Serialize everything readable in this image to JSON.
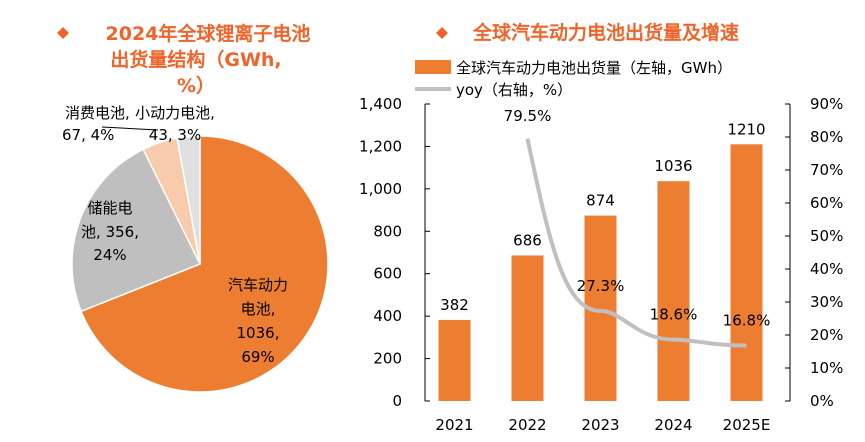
{
  "chart_data": [
    {
      "type": "pie",
      "title_lines": [
        "2024年全球锂离子电池",
        "出货量结构（GWh,",
        "%）"
      ],
      "slices": [
        {
          "name": "汽车动力电池",
          "value": 1036,
          "percent": 69,
          "color": "#ED7D31",
          "label_lines": [
            "汽车动力",
            "电池,",
            "1036,",
            "69%"
          ]
        },
        {
          "name": "储能电池",
          "value": 356,
          "percent": 24,
          "color": "#BFBFBF",
          "label_lines": [
            "储能电",
            "池, 356,",
            "24%"
          ]
        },
        {
          "name": "消费电池",
          "value": 67,
          "percent": 4,
          "color": "#F8CBAD",
          "label_lines": [
            "消费电池,",
            "67, 4%"
          ]
        },
        {
          "name": "小动力电池",
          "value": 43,
          "percent": 3,
          "color": "#E0E0E0",
          "label_lines": [
            "小动力电池,",
            "43, 3%"
          ]
        }
      ]
    },
    {
      "type": "bar+line",
      "title": "全球汽车动力电池出货量及增速",
      "categories": [
        "2021",
        "2022",
        "2023",
        "2024",
        "2025E"
      ],
      "series": [
        {
          "name": "全球汽车动力电池出货量（左轴，GWh）",
          "type": "bar",
          "axis": "left",
          "color": "#ED7D31",
          "values": [
            382,
            686,
            874,
            1036,
            1210
          ],
          "labels": [
            "382",
            "686",
            "874",
            "1036",
            "1210"
          ]
        },
        {
          "name": "yoy（右轴，%）",
          "type": "line",
          "axis": "right",
          "color": "#C0C0C0",
          "values": [
            null,
            79.5,
            27.3,
            18.6,
            16.8
          ],
          "labels": [
            "",
            "79.5%",
            "27.3%",
            "18.6%",
            "16.8%"
          ]
        }
      ],
      "ylim_left": [
        0,
        1400
      ],
      "yticks_left": [
        "0",
        "200",
        "400",
        "600",
        "800",
        "1,000",
        "1,200",
        "1,400"
      ],
      "ylim_right": [
        0,
        90
      ],
      "yticks_right": [
        "0%",
        "10%",
        "20%",
        "30%",
        "40%",
        "50%",
        "60%",
        "70%",
        "80%",
        "90%"
      ],
      "legend": "top"
    }
  ],
  "colors": {
    "title": "#F0642A",
    "axis": "#000000"
  }
}
